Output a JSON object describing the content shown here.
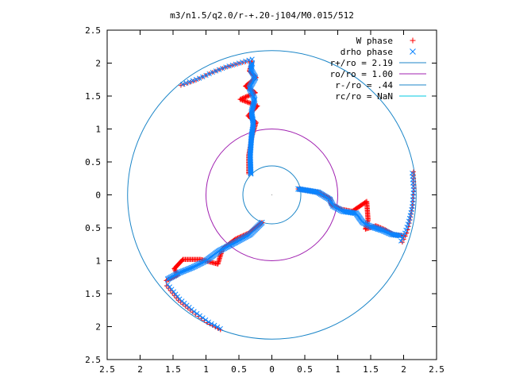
{
  "chart_data": {
    "type": "scatter",
    "title": "m3/n1.5/q2.0/r-+.20-j104/M0.015/512",
    "xlabel": "",
    "ylabel": "",
    "xlim": [
      -2.5,
      2.5
    ],
    "ylim": [
      -2.5,
      2.5
    ],
    "x_ticks": [
      -2.5,
      -2,
      -1.5,
      -1,
      -0.5,
      0,
      0.5,
      1,
      1.5,
      2,
      2.5
    ],
    "y_ticks": [
      -2.5,
      -2,
      -1.5,
      -1,
      -0.5,
      0,
      0.5,
      1,
      1.5,
      2,
      2.5
    ],
    "x_tick_labels": [
      "2.5",
      "2",
      "1.5",
      "1",
      "0.5",
      "0",
      "0.5",
      "1",
      "1.5",
      "2",
      "2.5"
    ],
    "y_tick_labels": [
      "2.5",
      "2",
      "1.5",
      "1",
      "0.5",
      "0",
      "0.5",
      "1",
      "1.5",
      "2",
      "2.5"
    ],
    "grid": false,
    "legend_position": "top-right",
    "series": [
      {
        "name": "W phase",
        "marker": "+",
        "color": "#ff0000",
        "arms": [
          [
            [
              -0.35,
              0.32
            ],
            [
              -0.35,
              0.6
            ],
            [
              -0.3,
              0.9
            ],
            [
              -0.24,
              1.1
            ],
            [
              -0.36,
              1.2
            ],
            [
              -0.22,
              1.35
            ],
            [
              -0.48,
              1.45
            ],
            [
              -0.25,
              1.55
            ],
            [
              -0.4,
              1.65
            ],
            [
              -0.24,
              1.78
            ],
            [
              -0.34,
              1.88
            ],
            [
              -0.3,
              2.02
            ]
          ],
          [
            [
              0.4,
              0.09
            ],
            [
              0.7,
              0.04
            ],
            [
              0.88,
              -0.05
            ],
            [
              0.9,
              -0.15
            ],
            [
              1.06,
              -0.22
            ],
            [
              1.22,
              -0.25
            ],
            [
              1.44,
              -0.1
            ],
            [
              1.46,
              -0.38
            ],
            [
              1.42,
              -0.52
            ],
            [
              1.58,
              -0.47
            ],
            [
              1.72,
              -0.53
            ],
            [
              1.84,
              -0.6
            ],
            [
              2.0,
              -0.62
            ]
          ],
          [
            [
              -0.15,
              -0.42
            ],
            [
              -0.35,
              -0.58
            ],
            [
              -0.55,
              -0.67
            ],
            [
              -0.75,
              -0.82
            ],
            [
              -0.82,
              -1.05
            ],
            [
              -1.08,
              -0.98
            ],
            [
              -1.35,
              -0.98
            ],
            [
              -1.48,
              -1.12
            ],
            [
              -1.43,
              -1.22
            ],
            [
              -1.6,
              -1.3
            ]
          ]
        ]
      },
      {
        "name": "drho phase",
        "marker": "x",
        "color": "#0a84ff",
        "arms": [
          [
            [
              -0.32,
              0.32
            ],
            [
              -0.33,
              0.6
            ],
            [
              -0.31,
              0.88
            ],
            [
              -0.28,
              1.08
            ],
            [
              -0.31,
              1.25
            ],
            [
              -0.26,
              1.45
            ],
            [
              -0.34,
              1.62
            ],
            [
              -0.25,
              1.78
            ],
            [
              -0.32,
              1.9
            ],
            [
              -0.3,
              2.0
            ]
          ],
          [
            [
              0.4,
              0.09
            ],
            [
              0.7,
              0.04
            ],
            [
              0.88,
              -0.07
            ],
            [
              0.93,
              -0.17
            ],
            [
              1.08,
              -0.25
            ],
            [
              1.28,
              -0.28
            ],
            [
              1.38,
              -0.42
            ],
            [
              1.5,
              -0.48
            ],
            [
              1.68,
              -0.54
            ],
            [
              1.82,
              -0.6
            ],
            [
              1.95,
              -0.62
            ]
          ],
          [
            [
              -0.15,
              -0.42
            ],
            [
              -0.33,
              -0.6
            ],
            [
              -0.55,
              -0.72
            ],
            [
              -0.8,
              -0.85
            ],
            [
              -1.0,
              -1.0
            ],
            [
              -1.2,
              -1.1
            ],
            [
              -1.4,
              -1.18
            ],
            [
              -1.58,
              -1.28
            ]
          ]
        ]
      }
    ],
    "outer_tails": {
      "W phase": [
        [
          [
            -0.35,
            2.03
          ],
          [
            -0.55,
            1.98
          ],
          [
            -0.75,
            1.92
          ],
          [
            -0.95,
            1.84
          ],
          [
            -1.15,
            1.74
          ],
          [
            -1.38,
            1.66
          ]
        ],
        [
          [
            2.15,
            0.35
          ],
          [
            2.16,
            0.1
          ],
          [
            2.14,
            -0.15
          ],
          [
            2.1,
            -0.38
          ],
          [
            2.05,
            -0.58
          ],
          [
            1.98,
            -0.72
          ]
        ],
        [
          [
            -1.6,
            -1.38
          ],
          [
            -1.42,
            -1.6
          ],
          [
            -1.2,
            -1.78
          ],
          [
            -0.98,
            -1.94
          ],
          [
            -0.78,
            -2.05
          ]
        ]
      ],
      "drho phase": [
        [
          [
            -0.3,
            2.06
          ],
          [
            -0.5,
            2.0
          ],
          [
            -0.7,
            1.94
          ],
          [
            -0.9,
            1.86
          ],
          [
            -1.1,
            1.77
          ],
          [
            -1.35,
            1.68
          ]
        ],
        [
          [
            2.13,
            0.33
          ],
          [
            2.15,
            0.08
          ],
          [
            2.13,
            -0.18
          ],
          [
            2.08,
            -0.4
          ],
          [
            2.02,
            -0.58
          ],
          [
            1.96,
            -0.7
          ]
        ],
        [
          [
            -1.58,
            -1.36
          ],
          [
            -1.4,
            -1.58
          ],
          [
            -1.18,
            -1.77
          ],
          [
            -0.96,
            -1.93
          ],
          [
            -0.78,
            -2.03
          ]
        ]
      ]
    },
    "circles": [
      {
        "name": "r+/ro = 2.19",
        "radius": 2.19,
        "color": "#1c86c8"
      },
      {
        "name": "ro/ro = 1.00",
        "radius": 1.0,
        "color": "#a020b0"
      },
      {
        "name": "r-/ro = .44",
        "radius": 0.44,
        "color": "#1c86c8"
      },
      {
        "name": "rc/ro = NaN",
        "radius": null,
        "color": "#00c8e0"
      }
    ]
  }
}
